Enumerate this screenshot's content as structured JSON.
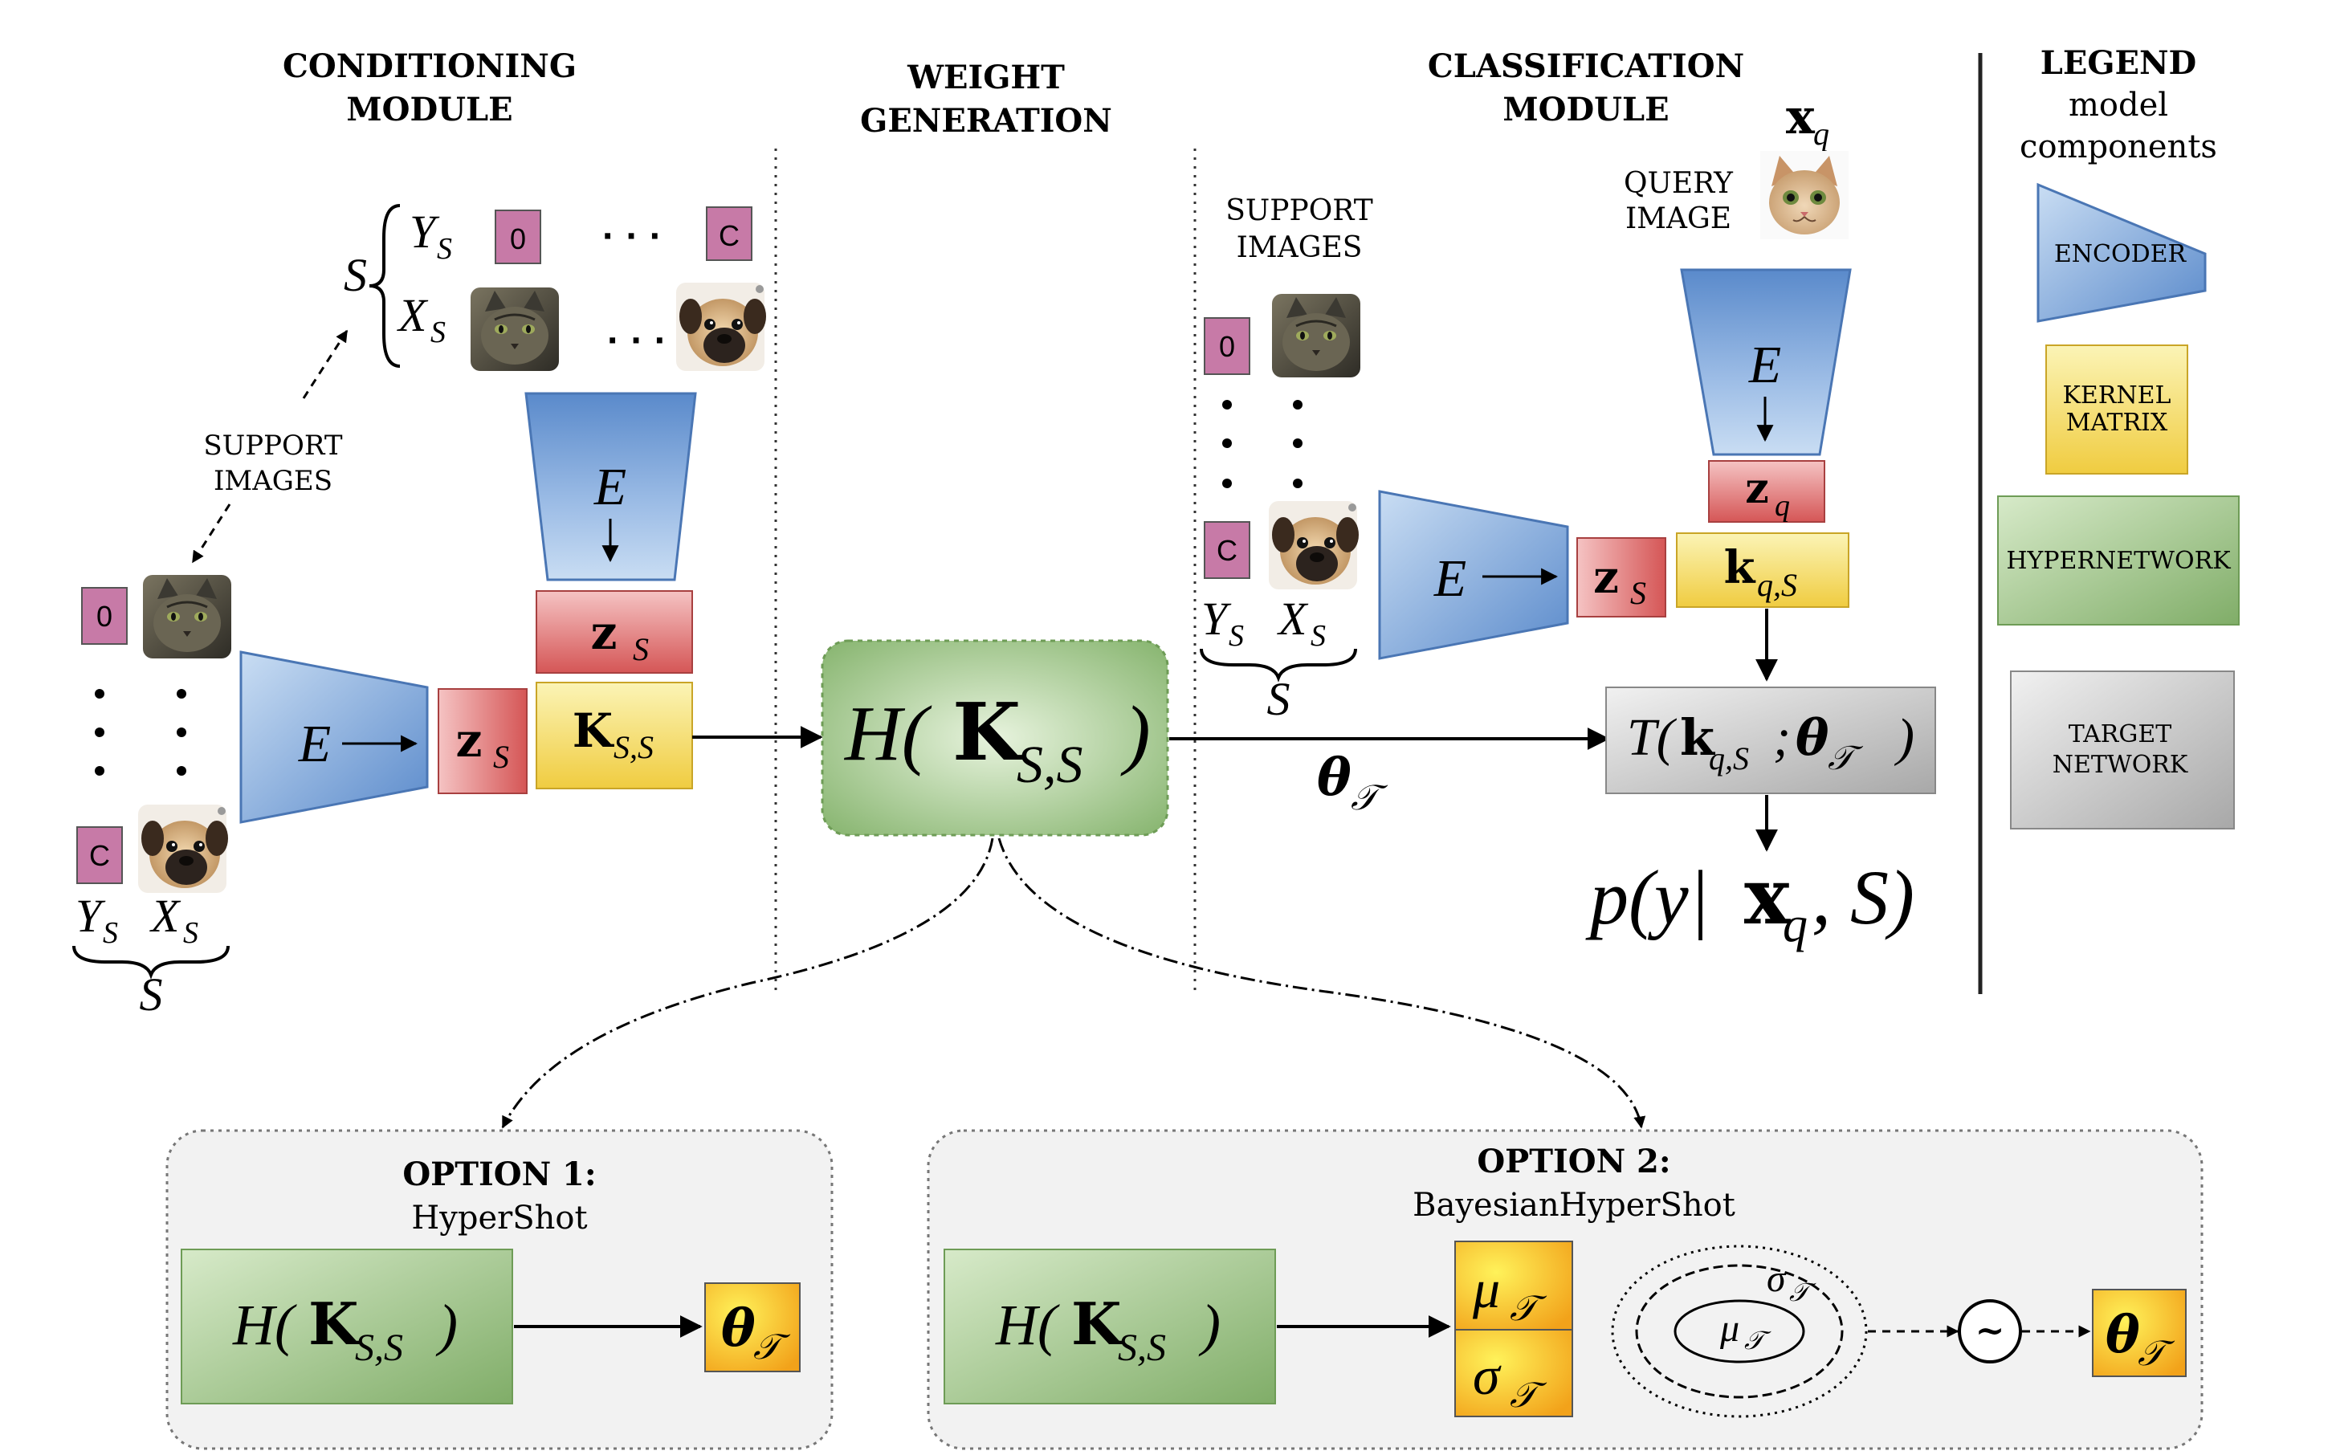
{
  "sections": {
    "conditioning": [
      "CONDITIONING",
      "MODULE"
    ],
    "weight_generation": [
      "WEIGHT",
      "GENERATION"
    ],
    "classification": [
      "CLASSIFICATION",
      "MODULE"
    ],
    "legend": {
      "title": "LEGEND",
      "sub1": "model",
      "sub2": "components"
    }
  },
  "labels": {
    "support_images": [
      "SUPPORT",
      "IMAGES"
    ],
    "query_image": [
      "QUERY",
      "IMAGE"
    ],
    "class_0": "0",
    "class_c": "C",
    "dots": "· · ·",
    "S": "S",
    "Ys": "Y",
    "Xs": "X",
    "sub_S": "S",
    "E": "E",
    "xq": "x",
    "sub_q": "q"
  },
  "math": {
    "zS": "z",
    "zq": "z",
    "KSS": "K",
    "sub_SS": "S,S",
    "kqS": "k",
    "sub_qS": "q,S",
    "H_open": "H(",
    "H_close": ")",
    "theta": "θ",
    "sub_T": "𝒯",
    "T_fn_open": "T(",
    "T_fn_mid": ";",
    "T_fn_close": ")",
    "p_open": "p(y|",
    "p_mid": ", S)",
    "mu": "μ",
    "sigma": "σ",
    "sim": "~"
  },
  "options": {
    "opt1_title": "OPTION 1:",
    "opt1_name": "HyperShot",
    "opt2_title": "OPTION 2:",
    "opt2_name": "BayesianHyperShot"
  },
  "legend_items": {
    "encoder": "ENCODER",
    "kernel": [
      "KERNEL",
      "MATRIX"
    ],
    "hypernetwork": "HYPERNETWORK",
    "target": [
      "TARGET",
      "NETWORK"
    ]
  },
  "colors": {
    "encoder_light": "#bcd4ee",
    "encoder_dark": "#5f8fcf",
    "kernel_light": "#fbf3b0",
    "kernel_dark": "#f2d046",
    "z_light": "#f2b8b8",
    "z_dark": "#d65a5a",
    "hyper_light": "#d8ebcc",
    "hyper_dark": "#7fae67",
    "target_light": "#ececec",
    "target_dark": "#a9a9a9",
    "label_box": "#c77aa7",
    "option_bg": "#f2f2f2",
    "theta_light": "#ffef4a",
    "theta_dark": "#f3a51c"
  },
  "icons": [
    "cat-image",
    "pug-image"
  ]
}
